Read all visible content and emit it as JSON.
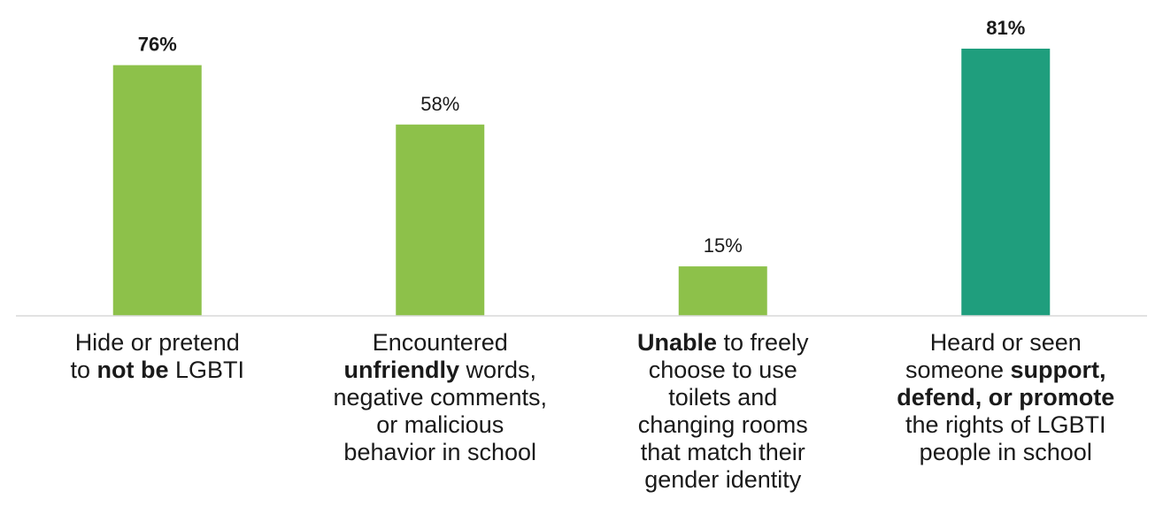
{
  "chart_data": {
    "type": "bar",
    "categories": [
      {
        "parts": [
          {
            "t": "Hide or pretend",
            "b": false
          },
          {
            "br": true
          },
          {
            "t": "to ",
            "b": false
          },
          {
            "t": "not be",
            "b": true
          },
          {
            "t": " LGBTI",
            "b": false
          }
        ]
      },
      {
        "parts": [
          {
            "t": "Encountered",
            "b": false
          },
          {
            "br": true
          },
          {
            "t": "unfriendly",
            "b": true
          },
          {
            "t": " words,",
            "b": false
          },
          {
            "br": true
          },
          {
            "t": "negative comments,",
            "b": false
          },
          {
            "br": true
          },
          {
            "t": "or malicious",
            "b": false
          },
          {
            "br": true
          },
          {
            "t": "behavior in school",
            "b": false
          }
        ]
      },
      {
        "parts": [
          {
            "t": "Unable",
            "b": true
          },
          {
            "t": " to freely",
            "b": false
          },
          {
            "br": true
          },
          {
            "t": "choose to use",
            "b": false
          },
          {
            "br": true
          },
          {
            "t": "toilets and",
            "b": false
          },
          {
            "br": true
          },
          {
            "t": "changing rooms",
            "b": false
          },
          {
            "br": true
          },
          {
            "t": "that match their",
            "b": false
          },
          {
            "br": true
          },
          {
            "t": "gender identity",
            "b": false
          }
        ]
      },
      {
        "parts": [
          {
            "t": "Heard or seen",
            "b": false
          },
          {
            "br": true
          },
          {
            "t": "someone ",
            "b": false
          },
          {
            "t": "support,",
            "b": true
          },
          {
            "br": true
          },
          {
            "t": "defend, or promote",
            "b": true
          },
          {
            "br": true
          },
          {
            "t": "the rights of LGBTI",
            "b": false
          },
          {
            "br": true
          },
          {
            "t": "people in school",
            "b": false
          }
        ]
      }
    ],
    "values": [
      76,
      58,
      15,
      81
    ],
    "value_labels": [
      "76%",
      "58%",
      "15%",
      "81%"
    ],
    "value_label_bold": [
      true,
      false,
      false,
      true
    ],
    "colors": [
      "#8dc14a",
      "#8dc14a",
      "#8dc14a",
      "#1f9e7d"
    ],
    "axis_color": "#d9d9d9",
    "ylim": [
      0,
      81
    ],
    "grid": false,
    "legend": "none"
  }
}
